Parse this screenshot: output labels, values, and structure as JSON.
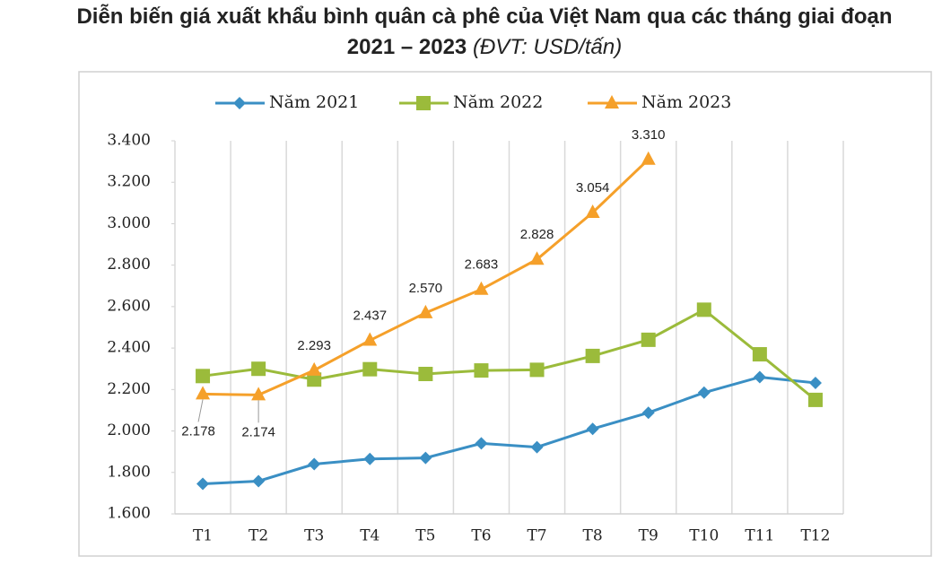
{
  "chart_data": {
    "type": "line",
    "title": "Diễn biến giá xuất khẩu bình quân cà phê của Việt Nam qua các tháng giai đoạn 2021 – 2023",
    "unit": "(ĐVT: USD/tấn)",
    "categories": [
      "T1",
      "T2",
      "T3",
      "T4",
      "T5",
      "T6",
      "T7",
      "T8",
      "T9",
      "T10",
      "T11",
      "T12"
    ],
    "series": [
      {
        "name": "Năm 2021",
        "color": "#3a8fc4",
        "marker": "diamond",
        "values": [
          1745,
          1758,
          1840,
          1865,
          1870,
          1940,
          1922,
          2010,
          2088,
          2185,
          2260,
          2232
        ]
      },
      {
        "name": "Năm 2022",
        "color": "#9bbb3b",
        "marker": "square",
        "values": [
          2265,
          2300,
          2248,
          2298,
          2275,
          2292,
          2295,
          2362,
          2440,
          2585,
          2370,
          2150
        ]
      },
      {
        "name": "Năm 2023",
        "color": "#f5a02a",
        "marker": "triangle",
        "values": [
          2178,
          2174,
          2293,
          2437,
          2570,
          2683,
          2828,
          3054,
          3310,
          null,
          null,
          null
        ],
        "value_labels": [
          "2.178",
          "2.174",
          "2.293",
          "2.437",
          "2.570",
          "2.683",
          "2.828",
          "3.054",
          "3.310",
          null,
          null,
          null
        ]
      }
    ],
    "ylim": [
      1600,
      3400
    ],
    "yticks": [
      {
        "value": 1600,
        "label": "1.600"
      },
      {
        "value": 1800,
        "label": "1.800"
      },
      {
        "value": 2000,
        "label": "2.000"
      },
      {
        "value": 2200,
        "label": "2.200"
      },
      {
        "value": 2400,
        "label": "2.400"
      },
      {
        "value": 2600,
        "label": "2.600"
      },
      {
        "value": 2800,
        "label": "2.800"
      },
      {
        "value": 3000,
        "label": "3.000"
      },
      {
        "value": 3200,
        "label": "3.200"
      },
      {
        "value": 3400,
        "label": "3.400"
      }
    ],
    "grid": "x",
    "legend": "top"
  }
}
